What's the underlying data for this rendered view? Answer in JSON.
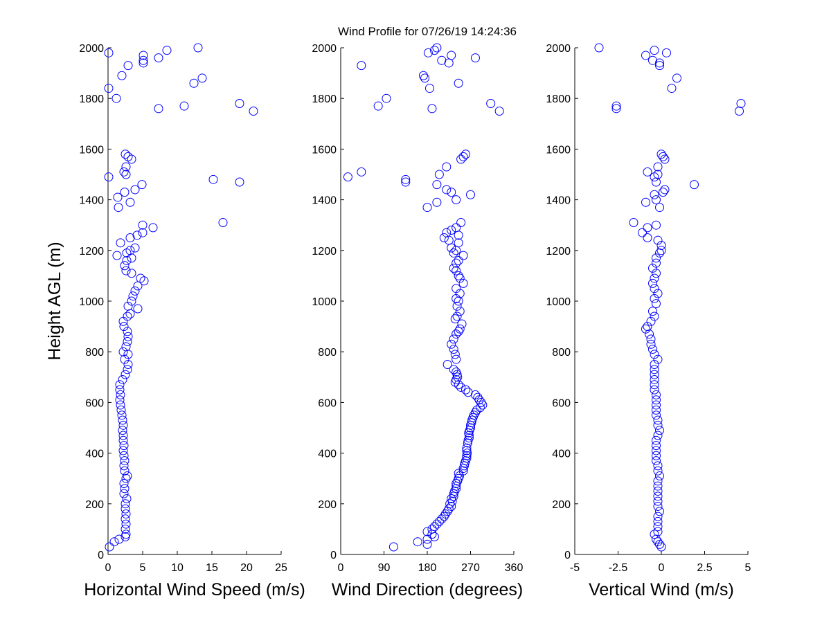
{
  "figure": {
    "title": "Wind Profile for  07/26/19 14:24:36",
    "ylabel": "Height AGL (m)",
    "marker_color": "#0000ff"
  },
  "chart_data": [
    {
      "type": "scatter",
      "xlabel": "Horizontal Wind Speed (m/s)",
      "ylabel": "Height AGL (m)",
      "xlim": [
        0,
        25
      ],
      "ylim": [
        0,
        2000
      ],
      "xticks": [
        "0",
        "5",
        "10",
        "15",
        "20",
        "25"
      ],
      "yticks": [
        "0",
        "200",
        "400",
        "600",
        "800",
        "1000",
        "1200",
        "1400",
        "1600",
        "1800",
        "2000"
      ],
      "points": [
        [
          0.2,
          30
        ],
        [
          0.9,
          50
        ],
        [
          1.6,
          60
        ],
        [
          2.5,
          70
        ],
        [
          2.6,
          80
        ],
        [
          2.5,
          100
        ],
        [
          2.6,
          120
        ],
        [
          2.5,
          140
        ],
        [
          2.6,
          160
        ],
        [
          2.5,
          180
        ],
        [
          2.5,
          200
        ],
        [
          2.7,
          220
        ],
        [
          2.3,
          240
        ],
        [
          2.4,
          260
        ],
        [
          2.3,
          280
        ],
        [
          2.6,
          300
        ],
        [
          2.8,
          310
        ],
        [
          2.4,
          330
        ],
        [
          2.3,
          350
        ],
        [
          2.4,
          370
        ],
        [
          2.3,
          390
        ],
        [
          2.2,
          410
        ],
        [
          2.3,
          430
        ],
        [
          2.2,
          450
        ],
        [
          2.2,
          470
        ],
        [
          2.1,
          490
        ],
        [
          2.2,
          510
        ],
        [
          2.1,
          530
        ],
        [
          2.0,
          550
        ],
        [
          1.9,
          570
        ],
        [
          1.8,
          590
        ],
        [
          1.7,
          610
        ],
        [
          1.8,
          630
        ],
        [
          1.7,
          650
        ],
        [
          1.7,
          670
        ],
        [
          2.1,
          690
        ],
        [
          2.5,
          710
        ],
        [
          2.8,
          730
        ],
        [
          2.9,
          750
        ],
        [
          2.4,
          770
        ],
        [
          2.9,
          790
        ],
        [
          2.2,
          800
        ],
        [
          2.6,
          820
        ],
        [
          2.8,
          840
        ],
        [
          2.9,
          860
        ],
        [
          2.8,
          880
        ],
        [
          2.3,
          900
        ],
        [
          2.2,
          920
        ],
        [
          2.8,
          940
        ],
        [
          3.2,
          950
        ],
        [
          4.3,
          970
        ],
        [
          2.9,
          980
        ],
        [
          3.4,
          1000
        ],
        [
          3.6,
          1020
        ],
        [
          3.9,
          1040
        ],
        [
          4.3,
          1060
        ],
        [
          5.2,
          1080
        ],
        [
          4.7,
          1090
        ],
        [
          3.4,
          1110
        ],
        [
          2.6,
          1120
        ],
        [
          2.4,
          1140
        ],
        [
          2.7,
          1160
        ],
        [
          3.4,
          1170
        ],
        [
          2.7,
          1190
        ],
        [
          3.2,
          1200
        ],
        [
          3.9,
          1210
        ],
        [
          1.8,
          1230
        ],
        [
          3.2,
          1250
        ],
        [
          4.2,
          1260
        ],
        [
          5.0,
          1270
        ],
        [
          6.5,
          1290
        ],
        [
          5.0,
          1300
        ],
        [
          1.3,
          1180
        ],
        [
          1.5,
          1370
        ],
        [
          3.2,
          1390
        ],
        [
          1.4,
          1410
        ],
        [
          2.4,
          1430
        ],
        [
          3.9,
          1440
        ],
        [
          4.9,
          1460
        ],
        [
          16.6,
          1310
        ],
        [
          19.0,
          1470
        ],
        [
          15.2,
          1480
        ],
        [
          0.1,
          1490
        ],
        [
          2.6,
          1500
        ],
        [
          2.3,
          1510
        ],
        [
          2.6,
          1530
        ],
        [
          3.4,
          1560
        ],
        [
          2.9,
          1570
        ],
        [
          2.5,
          1580
        ],
        [
          21.0,
          1750
        ],
        [
          7.3,
          1760
        ],
        [
          11.0,
          1770
        ],
        [
          19.0,
          1780
        ],
        [
          1.2,
          1800
        ],
        [
          0.1,
          1840
        ],
        [
          12.4,
          1860
        ],
        [
          13.6,
          1880
        ],
        [
          2.0,
          1890
        ],
        [
          2.9,
          1930
        ],
        [
          5.1,
          1940
        ],
        [
          5.1,
          1950
        ],
        [
          7.3,
          1960
        ],
        [
          5.1,
          1970
        ],
        [
          0.1,
          1980
        ],
        [
          8.5,
          1990
        ],
        [
          13.0,
          2000
        ]
      ]
    },
    {
      "type": "scatter",
      "xlabel": "Wind Direction (degrees)",
      "ylabel": "",
      "xlim": [
        0,
        360
      ],
      "ylim": [
        0,
        2000
      ],
      "xticks": [
        "0",
        "90",
        "180",
        "270",
        "360"
      ],
      "yticks": [
        "0",
        "200",
        "400",
        "600",
        "800",
        "1000",
        "1200",
        "1400",
        "1600",
        "1800",
        "2000"
      ],
      "points": [
        [
          110,
          30
        ],
        [
          180,
          40
        ],
        [
          160,
          50
        ],
        [
          180,
          60
        ],
        [
          195,
          70
        ],
        [
          190,
          80
        ],
        [
          180,
          90
        ],
        [
          190,
          100
        ],
        [
          195,
          110
        ],
        [
          200,
          120
        ],
        [
          205,
          130
        ],
        [
          210,
          140
        ],
        [
          215,
          150
        ],
        [
          218,
          160
        ],
        [
          222,
          170
        ],
        [
          225,
          180
        ],
        [
          230,
          190
        ],
        [
          227,
          200
        ],
        [
          232,
          210
        ],
        [
          230,
          220
        ],
        [
          235,
          230
        ],
        [
          235,
          240
        ],
        [
          237,
          250
        ],
        [
          240,
          260
        ],
        [
          240,
          270
        ],
        [
          240,
          280
        ],
        [
          243,
          290
        ],
        [
          245,
          300
        ],
        [
          247,
          310
        ],
        [
          245,
          320
        ],
        [
          255,
          330
        ],
        [
          255,
          340
        ],
        [
          257,
          350
        ],
        [
          258,
          360
        ],
        [
          260,
          370
        ],
        [
          262,
          380
        ],
        [
          262,
          390
        ],
        [
          263,
          400
        ],
        [
          262,
          410
        ],
        [
          262,
          420
        ],
        [
          264,
          440
        ],
        [
          265,
          450
        ],
        [
          267,
          460
        ],
        [
          267,
          470
        ],
        [
          266,
          480
        ],
        [
          268,
          490
        ],
        [
          270,
          500
        ],
        [
          270,
          510
        ],
        [
          272,
          520
        ],
        [
          273,
          530
        ],
        [
          275,
          540
        ],
        [
          277,
          550
        ],
        [
          280,
          560
        ],
        [
          283,
          570
        ],
        [
          290,
          580
        ],
        [
          295,
          590
        ],
        [
          292,
          600
        ],
        [
          288,
          610
        ],
        [
          285,
          620
        ],
        [
          280,
          630
        ],
        [
          265,
          640
        ],
        [
          260,
          650
        ],
        [
          250,
          660
        ],
        [
          245,
          670
        ],
        [
          238,
          680
        ],
        [
          240,
          690
        ],
        [
          243,
          700
        ],
        [
          242,
          710
        ],
        [
          240,
          720
        ],
        [
          235,
          730
        ],
        [
          222,
          750
        ],
        [
          240,
          770
        ],
        [
          238,
          790
        ],
        [
          235,
          810
        ],
        [
          230,
          830
        ],
        [
          235,
          850
        ],
        [
          240,
          870
        ],
        [
          245,
          880
        ],
        [
          248,
          890
        ],
        [
          252,
          910
        ],
        [
          238,
          930
        ],
        [
          242,
          940
        ],
        [
          248,
          960
        ],
        [
          242,
          980
        ],
        [
          245,
          1000
        ],
        [
          240,
          1010
        ],
        [
          248,
          1030
        ],
        [
          240,
          1050
        ],
        [
          255,
          1070
        ],
        [
          248,
          1090
        ],
        [
          245,
          1100
        ],
        [
          240,
          1120
        ],
        [
          235,
          1130
        ],
        [
          240,
          1150
        ],
        [
          245,
          1160
        ],
        [
          255,
          1180
        ],
        [
          235,
          1190
        ],
        [
          240,
          1200
        ],
        [
          230,
          1210
        ],
        [
          245,
          1230
        ],
        [
          225,
          1240
        ],
        [
          215,
          1250
        ],
        [
          245,
          1260
        ],
        [
          220,
          1270
        ],
        [
          230,
          1280
        ],
        [
          240,
          1290
        ],
        [
          250,
          1310
        ],
        [
          180,
          1370
        ],
        [
          200,
          1390
        ],
        [
          240,
          1400
        ],
        [
          270,
          1420
        ],
        [
          230,
          1430
        ],
        [
          220,
          1440
        ],
        [
          200,
          1460
        ],
        [
          135,
          1470
        ],
        [
          135,
          1480
        ],
        [
          15,
          1490
        ],
        [
          205,
          1500
        ],
        [
          43,
          1510
        ],
        [
          220,
          1530
        ],
        [
          250,
          1560
        ],
        [
          255,
          1570
        ],
        [
          260,
          1580
        ],
        [
          330,
          1750
        ],
        [
          190,
          1760
        ],
        [
          78,
          1770
        ],
        [
          312,
          1780
        ],
        [
          95,
          1800
        ],
        [
          185,
          1840
        ],
        [
          245,
          1860
        ],
        [
          175,
          1880
        ],
        [
          172,
          1890
        ],
        [
          43,
          1930
        ],
        [
          225,
          1940
        ],
        [
          210,
          1950
        ],
        [
          280,
          1960
        ],
        [
          230,
          1970
        ],
        [
          182,
          1980
        ],
        [
          195,
          1990
        ],
        [
          200,
          2000
        ]
      ]
    },
    {
      "type": "scatter",
      "xlabel": "Vertical Wind (m/s)",
      "ylabel": "",
      "xlim": [
        -5,
        5
      ],
      "ylim": [
        0,
        2000
      ],
      "xticks": [
        "-5",
        "-2.5",
        "0",
        "2.5",
        "5"
      ],
      "yticks": [
        "0",
        "200",
        "400",
        "600",
        "800",
        "1000",
        "1200",
        "1400",
        "1600",
        "1800",
        "2000"
      ],
      "points": [
        [
          0.0,
          30
        ],
        [
          -0.1,
          40
        ],
        [
          -0.2,
          50
        ],
        [
          -0.3,
          60
        ],
        [
          -0.4,
          80
        ],
        [
          -0.2,
          90
        ],
        [
          -0.2,
          110
        ],
        [
          -0.2,
          130
        ],
        [
          -0.2,
          150
        ],
        [
          -0.1,
          170
        ],
        [
          -0.2,
          190
        ],
        [
          -0.2,
          210
        ],
        [
          -0.2,
          230
        ],
        [
          -0.2,
          250
        ],
        [
          -0.2,
          270
        ],
        [
          -0.2,
          290
        ],
        [
          -0.1,
          310
        ],
        [
          -0.2,
          330
        ],
        [
          -0.2,
          350
        ],
        [
          -0.3,
          370
        ],
        [
          -0.3,
          390
        ],
        [
          -0.3,
          410
        ],
        [
          -0.3,
          430
        ],
        [
          -0.3,
          450
        ],
        [
          -0.2,
          470
        ],
        [
          -0.1,
          490
        ],
        [
          -0.2,
          510
        ],
        [
          -0.2,
          530
        ],
        [
          -0.3,
          550
        ],
        [
          -0.3,
          570
        ],
        [
          -0.3,
          590
        ],
        [
          -0.3,
          610
        ],
        [
          -0.3,
          630
        ],
        [
          -0.4,
          650
        ],
        [
          -0.4,
          670
        ],
        [
          -0.4,
          690
        ],
        [
          -0.4,
          710
        ],
        [
          -0.4,
          730
        ],
        [
          -0.4,
          750
        ],
        [
          -0.2,
          770
        ],
        [
          -0.4,
          790
        ],
        [
          -0.5,
          810
        ],
        [
          -0.6,
          830
        ],
        [
          -0.6,
          850
        ],
        [
          -0.7,
          870
        ],
        [
          -0.9,
          890
        ],
        [
          -0.8,
          900
        ],
        [
          -0.6,
          920
        ],
        [
          -0.4,
          940
        ],
        [
          -0.5,
          960
        ],
        [
          -0.3,
          990
        ],
        [
          -0.4,
          1010
        ],
        [
          -0.2,
          1030
        ],
        [
          -0.4,
          1050
        ],
        [
          -0.5,
          1070
        ],
        [
          -0.4,
          1090
        ],
        [
          -0.3,
          1110
        ],
        [
          -0.5,
          1130
        ],
        [
          -0.3,
          1150
        ],
        [
          -0.3,
          1170
        ],
        [
          -0.1,
          1190
        ],
        [
          0.0,
          1200
        ],
        [
          0.0,
          1220
        ],
        [
          -0.2,
          1240
        ],
        [
          -0.8,
          1250
        ],
        [
          -1.1,
          1270
        ],
        [
          -0.8,
          1290
        ],
        [
          -0.3,
          1300
        ],
        [
          -1.6,
          1310
        ],
        [
          -0.1,
          1370
        ],
        [
          -0.9,
          1390
        ],
        [
          -0.3,
          1400
        ],
        [
          -0.4,
          1420
        ],
        [
          0.1,
          1430
        ],
        [
          0.2,
          1440
        ],
        [
          1.9,
          1460
        ],
        [
          -0.3,
          1470
        ],
        [
          -0.4,
          1490
        ],
        [
          -0.2,
          1500
        ],
        [
          -0.8,
          1510
        ],
        [
          -0.2,
          1530
        ],
        [
          0.2,
          1560
        ],
        [
          0.1,
          1570
        ],
        [
          0.0,
          1580
        ],
        [
          4.5,
          1750
        ],
        [
          -2.6,
          1760
        ],
        [
          -2.6,
          1770
        ],
        [
          4.6,
          1780
        ],
        [
          0.6,
          1840
        ],
        [
          0.9,
          1880
        ],
        [
          -0.1,
          1930
        ],
        [
          -0.1,
          1940
        ],
        [
          -0.5,
          1950
        ],
        [
          -0.9,
          1970
        ],
        [
          0.3,
          1980
        ],
        [
          -0.4,
          1990
        ],
        [
          -3.6,
          2000
        ]
      ]
    }
  ]
}
